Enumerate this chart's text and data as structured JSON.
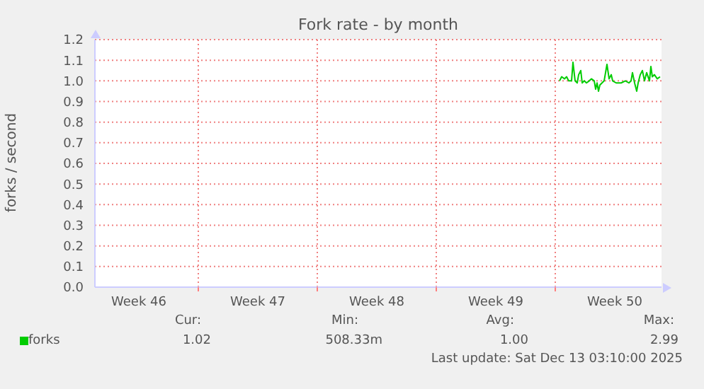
{
  "chart_data": {
    "type": "line",
    "title": "Fork rate - by month",
    "ylabel": "forks / second",
    "x": [
      "2025-12-07T06:00",
      "2025-12-07T09:00",
      "2025-12-07T13:00",
      "2025-12-07T16:00",
      "2025-12-07T19:00",
      "2025-12-07T23:00",
      "2025-12-08T01:00",
      "2025-12-08T04:00",
      "2025-12-08T07:00",
      "2025-12-08T09:00",
      "2025-12-08T12:00",
      "2025-12-08T14:00",
      "2025-12-08T17:00",
      "2025-12-08T20:00",
      "2025-12-09T00:00",
      "2025-12-09T03:00",
      "2025-12-09T07:00",
      "2025-12-09T09:00",
      "2025-12-09T11:00",
      "2025-12-09T13:00",
      "2025-12-09T15:00",
      "2025-12-09T18:00",
      "2025-12-09T21:00",
      "2025-12-10T01:00",
      "2025-12-10T04:00",
      "2025-12-10T07:00",
      "2025-12-10T09:00",
      "2025-12-10T14:00",
      "2025-12-10T21:00",
      "2025-12-11T03:00",
      "2025-12-11T08:00",
      "2025-12-11T11:00",
      "2025-12-11T13:00",
      "2025-12-11T16:00",
      "2025-12-11T19:00",
      "2025-12-11T21:00",
      "2025-12-12T00:00",
      "2025-12-12T03:00",
      "2025-12-12T06:00",
      "2025-12-12T09:00",
      "2025-12-12T13:00",
      "2025-12-12T15:00",
      "2025-12-12T17:00",
      "2025-12-12T20:00",
      "2025-12-13T00:00",
      "2025-12-13T04:00"
    ],
    "series": [
      {
        "name": "forks",
        "color": "#00cc00",
        "values": [
          1.0,
          1.02,
          1.01,
          1.02,
          1.0,
          1.0,
          1.09,
          1.0,
          0.99,
          1.03,
          1.05,
          0.99,
          1.0,
          0.99,
          1.0,
          1.01,
          1.0,
          0.96,
          0.99,
          0.95,
          0.98,
          0.99,
          1.0,
          1.08,
          1.01,
          1.03,
          1.0,
          0.99,
          0.99,
          1.0,
          0.99,
          1.0,
          1.04,
          0.99,
          0.95,
          0.99,
          1.03,
          1.05,
          1.0,
          1.04,
          1.0,
          1.07,
          1.02,
          1.03,
          1.01,
          1.02
        ]
      }
    ],
    "xlim": [
      "2025-11-09T22:00",
      "2025-12-13T06:00"
    ],
    "xticks": [
      {
        "value": "2025-11-12T12:00",
        "label": "Week 46"
      },
      {
        "value": "2025-11-16",
        "label": null
      },
      {
        "value": "2025-11-19T12:00",
        "label": "Week 47"
      },
      {
        "value": "2025-11-23",
        "label": null
      },
      {
        "value": "2025-11-26T12:00",
        "label": "Week 48"
      },
      {
        "value": "2025-11-30",
        "label": null
      },
      {
        "value": "2025-12-03T12:00",
        "label": "Week 49"
      },
      {
        "value": "2025-12-07",
        "label": null
      },
      {
        "value": "2025-12-10T12:00",
        "label": "Week 50"
      }
    ],
    "ylim": [
      0,
      1.2
    ],
    "yticks": [
      {
        "value": 0,
        "label": "0.0"
      },
      0.1,
      0.2,
      0.3,
      0.4,
      0.5,
      0.6,
      0.7,
      0.8,
      0.9,
      {
        "value": 1,
        "label": "1.0"
      },
      1.1,
      1.2
    ],
    "grid": true,
    "legend": "bottom left",
    "marker": "none",
    "line_style": "solid",
    "annotations": [
      "Cur:",
      "1.02",
      "Min:",
      "508.33m",
      "Avg:",
      "1.00",
      "Max:",
      "2.99",
      "Last update: Sat Dec 13 03:10:00 2025"
    ]
  }
}
